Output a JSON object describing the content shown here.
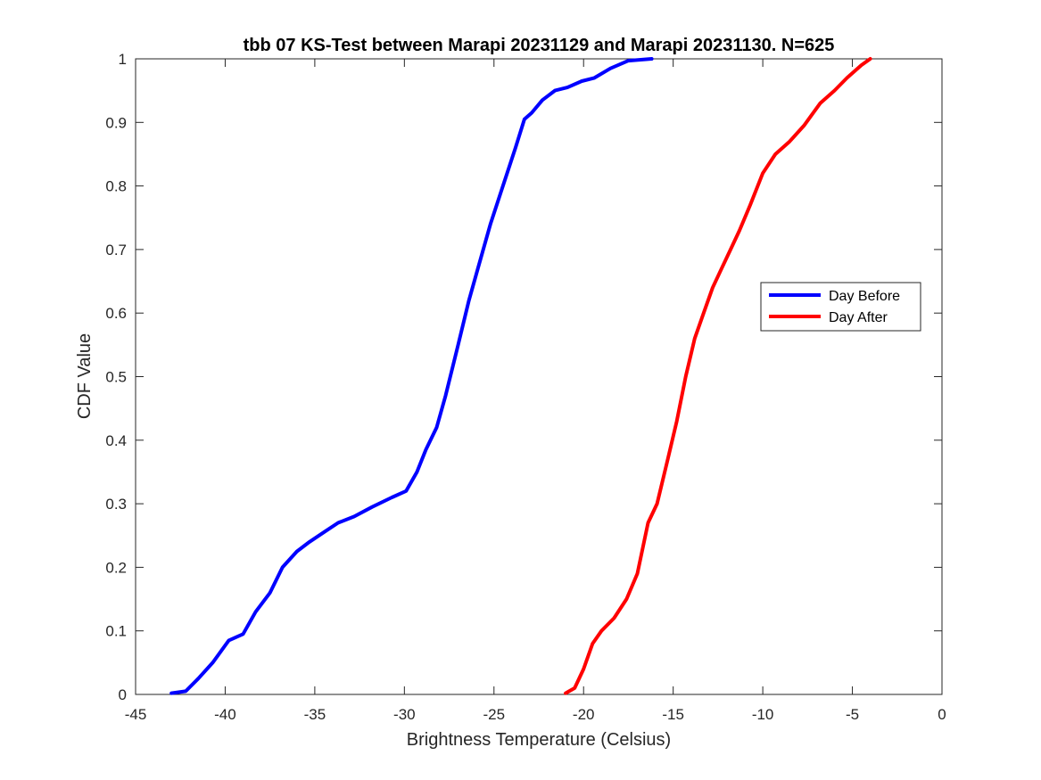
{
  "chart_data": {
    "type": "line",
    "title": "tbb 07 KS-Test between Marapi 20231129 and Marapi 20231130. N=625",
    "xlabel": "Brightness Temperature (Celsius)",
    "ylabel": "CDF Value",
    "xlim": [
      -45,
      0
    ],
    "ylim": [
      0,
      1
    ],
    "xticks": [
      -45,
      -40,
      -35,
      -30,
      -25,
      -20,
      -15,
      -10,
      -5,
      0
    ],
    "yticks": [
      0,
      0.1,
      0.2,
      0.3,
      0.4,
      0.5,
      0.6,
      0.7,
      0.8,
      0.9,
      1
    ],
    "xtick_labels": [
      "-45",
      "-40",
      "-35",
      "-30",
      "-25",
      "-20",
      "-15",
      "-10",
      "-5",
      "0"
    ],
    "ytick_labels": [
      "0",
      "0.1",
      "0.2",
      "0.3",
      "0.4",
      "0.5",
      "0.6",
      "0.7",
      "0.8",
      "0.9",
      "1"
    ],
    "grid": false,
    "box": true,
    "legend_position": "right",
    "series": [
      {
        "name": "Day Before",
        "color": "#0000ff",
        "x": [
          -43.0,
          -42.2,
          -41.5,
          -40.7,
          -39.8,
          -39.0,
          -38.3,
          -37.5,
          -36.8,
          -36.0,
          -35.3,
          -34.5,
          -33.7,
          -32.8,
          -31.8,
          -30.7,
          -29.9,
          -29.3,
          -28.8,
          -28.2,
          -27.7,
          -27.0,
          -26.4,
          -25.9,
          -25.2,
          -24.5,
          -23.8,
          -23.3,
          -22.9,
          -22.3,
          -21.6,
          -20.9,
          -20.1,
          -19.4,
          -18.5,
          -17.5,
          -16.2
        ],
        "y": [
          0.002,
          0.005,
          0.025,
          0.05,
          0.085,
          0.095,
          0.13,
          0.16,
          0.2,
          0.225,
          0.24,
          0.255,
          0.27,
          0.28,
          0.295,
          0.31,
          0.32,
          0.35,
          0.385,
          0.42,
          0.47,
          0.55,
          0.62,
          0.67,
          0.74,
          0.8,
          0.86,
          0.905,
          0.915,
          0.935,
          0.95,
          0.955,
          0.965,
          0.97,
          0.985,
          0.997,
          1.0
        ]
      },
      {
        "name": "Day After",
        "color": "#ff0000",
        "x": [
          -21.0,
          -20.5,
          -20.0,
          -19.5,
          -19.0,
          -18.3,
          -17.6,
          -17.0,
          -16.4,
          -15.9,
          -15.3,
          -14.8,
          -14.3,
          -13.8,
          -13.3,
          -12.8,
          -12.3,
          -11.8,
          -11.3,
          -10.7,
          -10.0,
          -9.3,
          -8.5,
          -7.7,
          -6.8,
          -6.0,
          -5.3,
          -4.5,
          -4.0
        ],
        "y": [
          0.002,
          0.01,
          0.04,
          0.08,
          0.1,
          0.12,
          0.15,
          0.19,
          0.27,
          0.3,
          0.37,
          0.43,
          0.5,
          0.56,
          0.6,
          0.64,
          0.67,
          0.7,
          0.73,
          0.77,
          0.82,
          0.85,
          0.87,
          0.895,
          0.93,
          0.95,
          0.97,
          0.99,
          1.0
        ]
      }
    ]
  }
}
